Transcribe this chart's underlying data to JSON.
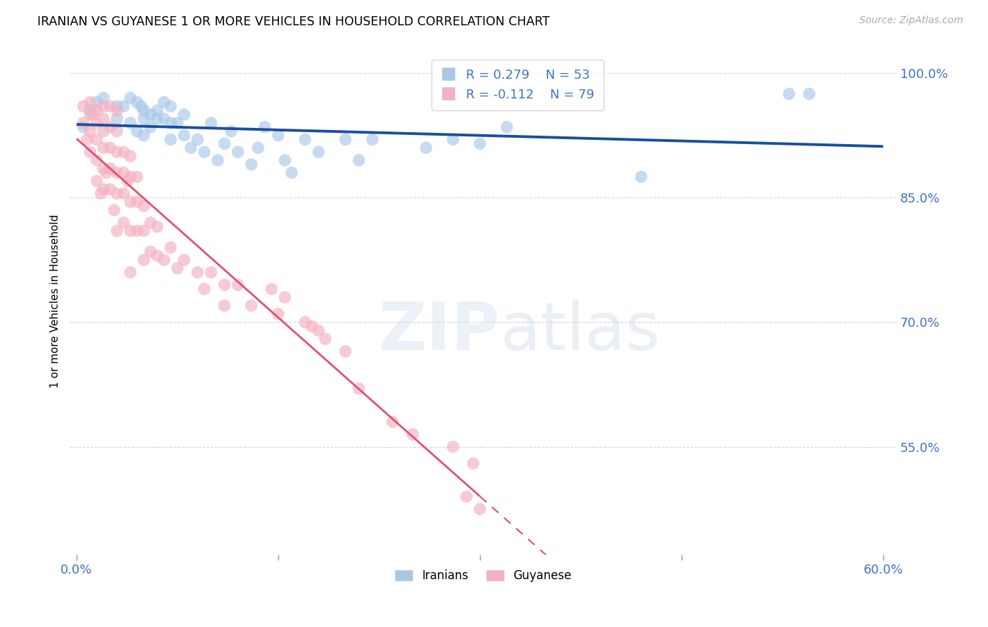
{
  "title": "IRANIAN VS GUYANESE 1 OR MORE VEHICLES IN HOUSEHOLD CORRELATION CHART",
  "source": "Source: ZipAtlas.com",
  "ylabel": "1 or more Vehicles in Household",
  "xlim": [
    -0.005,
    0.61
  ],
  "ylim": [
    0.42,
    1.03
  ],
  "xtick_vals": [
    0.0,
    0.15,
    0.3,
    0.45,
    0.6
  ],
  "xtick_labels": [
    "0.0%",
    "",
    "",
    "",
    "60.0%"
  ],
  "ytick_vals": [
    0.55,
    0.7,
    0.85,
    1.0
  ],
  "ytick_labels": [
    "55.0%",
    "70.0%",
    "85.0%",
    "100.0%"
  ],
  "blue_R": 0.279,
  "blue_N": 53,
  "pink_R": -0.112,
  "pink_N": 79,
  "blue_color": "#a8c8e8",
  "pink_color": "#f4b0c0",
  "blue_line_color": "#1a4fa0",
  "pink_line_color": "#e05070",
  "blue_x": [
    0.005,
    0.01,
    0.015,
    0.02,
    0.03,
    0.03,
    0.035,
    0.04,
    0.04,
    0.045,
    0.045,
    0.048,
    0.05,
    0.05,
    0.05,
    0.055,
    0.055,
    0.06,
    0.06,
    0.065,
    0.065,
    0.07,
    0.07,
    0.07,
    0.075,
    0.08,
    0.08,
    0.085,
    0.09,
    0.095,
    0.1,
    0.105,
    0.11,
    0.115,
    0.12,
    0.13,
    0.135,
    0.14,
    0.15,
    0.155,
    0.16,
    0.17,
    0.18,
    0.2,
    0.21,
    0.22,
    0.26,
    0.28,
    0.3,
    0.32,
    0.42,
    0.53,
    0.545
  ],
  "blue_y": [
    0.935,
    0.955,
    0.965,
    0.97,
    0.96,
    0.945,
    0.96,
    0.97,
    0.94,
    0.965,
    0.93,
    0.96,
    0.955,
    0.945,
    0.925,
    0.95,
    0.935,
    0.955,
    0.945,
    0.965,
    0.945,
    0.96,
    0.94,
    0.92,
    0.94,
    0.95,
    0.925,
    0.91,
    0.92,
    0.905,
    0.94,
    0.895,
    0.915,
    0.93,
    0.905,
    0.89,
    0.91,
    0.935,
    0.925,
    0.895,
    0.88,
    0.92,
    0.905,
    0.92,
    0.895,
    0.92,
    0.91,
    0.92,
    0.915,
    0.935,
    0.875,
    0.975,
    0.975
  ],
  "pink_x": [
    0.005,
    0.005,
    0.008,
    0.01,
    0.01,
    0.01,
    0.01,
    0.012,
    0.015,
    0.015,
    0.015,
    0.015,
    0.015,
    0.018,
    0.02,
    0.02,
    0.02,
    0.02,
    0.02,
    0.02,
    0.022,
    0.025,
    0.025,
    0.025,
    0.025,
    0.025,
    0.028,
    0.03,
    0.03,
    0.03,
    0.03,
    0.03,
    0.03,
    0.035,
    0.035,
    0.035,
    0.035,
    0.038,
    0.04,
    0.04,
    0.04,
    0.04,
    0.04,
    0.045,
    0.045,
    0.045,
    0.05,
    0.05,
    0.05,
    0.055,
    0.055,
    0.06,
    0.06,
    0.065,
    0.07,
    0.075,
    0.08,
    0.09,
    0.095,
    0.1,
    0.11,
    0.11,
    0.12,
    0.13,
    0.145,
    0.15,
    0.155,
    0.17,
    0.175,
    0.18,
    0.185,
    0.2,
    0.21,
    0.235,
    0.25,
    0.28,
    0.29,
    0.295,
    0.3
  ],
  "pink_y": [
    0.96,
    0.94,
    0.92,
    0.965,
    0.95,
    0.93,
    0.905,
    0.95,
    0.955,
    0.94,
    0.92,
    0.895,
    0.87,
    0.855,
    0.96,
    0.945,
    0.93,
    0.91,
    0.885,
    0.86,
    0.88,
    0.96,
    0.935,
    0.91,
    0.885,
    0.86,
    0.835,
    0.955,
    0.93,
    0.905,
    0.88,
    0.855,
    0.81,
    0.905,
    0.88,
    0.855,
    0.82,
    0.87,
    0.9,
    0.875,
    0.845,
    0.81,
    0.76,
    0.875,
    0.845,
    0.81,
    0.84,
    0.81,
    0.775,
    0.82,
    0.785,
    0.815,
    0.78,
    0.775,
    0.79,
    0.765,
    0.775,
    0.76,
    0.74,
    0.76,
    0.745,
    0.72,
    0.745,
    0.72,
    0.74,
    0.71,
    0.73,
    0.7,
    0.695,
    0.69,
    0.68,
    0.665,
    0.62,
    0.58,
    0.565,
    0.55,
    0.49,
    0.53,
    0.475
  ]
}
